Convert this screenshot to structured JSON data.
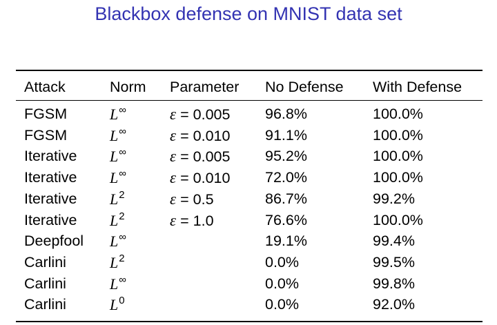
{
  "title": "Blackbox defense on MNIST data set",
  "table": {
    "headers": [
      "Attack",
      "Norm",
      "Parameter",
      "No Defense",
      "With Defense"
    ],
    "rows": [
      {
        "attack": "FGSM",
        "norm_base": "L",
        "norm_exp": "∞",
        "param_symbol": "ε",
        "param_eq": "=",
        "param_value": "0.005",
        "no_defense": "96.8%",
        "with_defense": "100.0%"
      },
      {
        "attack": "FGSM",
        "norm_base": "L",
        "norm_exp": "∞",
        "param_symbol": "ε",
        "param_eq": "=",
        "param_value": "0.010",
        "no_defense": "91.1%",
        "with_defense": "100.0%"
      },
      {
        "attack": "Iterative",
        "norm_base": "L",
        "norm_exp": "∞",
        "param_symbol": "ε",
        "param_eq": "=",
        "param_value": "0.005",
        "no_defense": "95.2%",
        "with_defense": "100.0%"
      },
      {
        "attack": "Iterative",
        "norm_base": "L",
        "norm_exp": "∞",
        "param_symbol": "ε",
        "param_eq": "=",
        "param_value": "0.010",
        "no_defense": "72.0%",
        "with_defense": "100.0%"
      },
      {
        "attack": "Iterative",
        "norm_base": "L",
        "norm_exp": "2",
        "param_symbol": "ε",
        "param_eq": "=",
        "param_value": "0.5",
        "no_defense": "86.7%",
        "with_defense": "99.2%"
      },
      {
        "attack": "Iterative",
        "norm_base": "L",
        "norm_exp": "2",
        "param_symbol": "ε",
        "param_eq": "=",
        "param_value": "1.0",
        "no_defense": "76.6%",
        "with_defense": "100.0%"
      },
      {
        "attack": "Deepfool",
        "norm_base": "L",
        "norm_exp": "∞",
        "param_symbol": "",
        "param_eq": "",
        "param_value": "",
        "no_defense": "19.1%",
        "with_defense": "99.4%"
      },
      {
        "attack": "Carlini",
        "norm_base": "L",
        "norm_exp": "2",
        "param_symbol": "",
        "param_eq": "",
        "param_value": "",
        "no_defense": "0.0%",
        "with_defense": "99.5%"
      },
      {
        "attack": "Carlini",
        "norm_base": "L",
        "norm_exp": "∞",
        "param_symbol": "",
        "param_eq": "",
        "param_value": "",
        "no_defense": "0.0%",
        "with_defense": "99.8%"
      },
      {
        "attack": "Carlini",
        "norm_base": "L",
        "norm_exp": "0",
        "param_symbol": "",
        "param_eq": "",
        "param_value": "",
        "no_defense": "0.0%",
        "with_defense": "92.0%"
      }
    ]
  },
  "colors": {
    "title": "#3333b2",
    "text": "#000000",
    "background": "#ffffff"
  }
}
